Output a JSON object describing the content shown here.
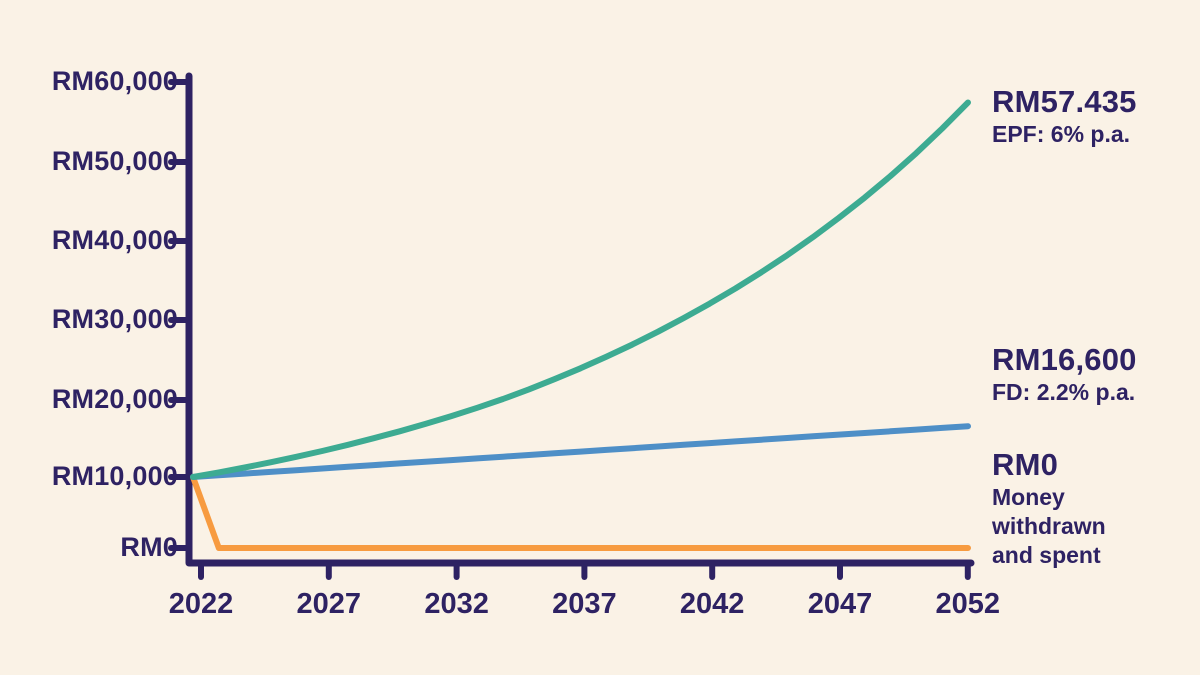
{
  "colors": {
    "background": "#faf2e6",
    "axis": "#2e2263",
    "text": "#2e2263",
    "epf_line": "#3dab92",
    "fd_line": "#4e8fc7",
    "withdrawn_line": "#f79b40"
  },
  "chart_data": {
    "type": "line",
    "title": "",
    "xlabel": "",
    "ylabel": "",
    "grid": false,
    "legend_position": "right-annotations",
    "x_range": [
      2022,
      2052
    ],
    "y_range": [
      0,
      60000
    ],
    "x_ticks": [
      2022,
      2027,
      2032,
      2037,
      2042,
      2047,
      2052
    ],
    "y_ticks": [
      0,
      10000,
      20000,
      30000,
      40000,
      50000,
      60000
    ],
    "y_tick_labels": [
      "RM0",
      "RM10,000",
      "RM20,000",
      "RM30,000",
      "RM40,000",
      "RM50,000",
      "RM60,000"
    ],
    "x": [
      2022,
      2023,
      2024,
      2025,
      2026,
      2027,
      2028,
      2029,
      2030,
      2031,
      2032,
      2033,
      2034,
      2035,
      2036,
      2037,
      2038,
      2039,
      2040,
      2041,
      2042,
      2043,
      2044,
      2045,
      2046,
      2047,
      2048,
      2049,
      2050,
      2051,
      2052
    ],
    "series": [
      {
        "name": "EPF",
        "end_label": "RM57.435",
        "sub_lines": [
          "EPF: 6% p.a."
        ],
        "color": "#3dab92",
        "values": [
          10000,
          10600,
          11236,
          11910,
          12625,
          13382,
          14185,
          15036,
          15938,
          16895,
          17908,
          18983,
          20122,
          21329,
          22609,
          23966,
          25404,
          26928,
          28543,
          30256,
          32071,
          33996,
          36035,
          38198,
          40489,
          42919,
          45494,
          48223,
          51117,
          54184,
          57435
        ]
      },
      {
        "name": "FD",
        "end_label": "RM16,600",
        "sub_lines": [
          "FD: 2.2% p.a."
        ],
        "color": "#4e8fc7",
        "values": [
          10000,
          10220,
          10440,
          10660,
          10880,
          11100,
          11320,
          11540,
          11760,
          11980,
          12200,
          12420,
          12640,
          12860,
          13080,
          13300,
          13520,
          13740,
          13960,
          14180,
          14400,
          14620,
          14840,
          15060,
          15280,
          15500,
          15720,
          15940,
          16160,
          16380,
          16600
        ]
      },
      {
        "name": "Money withdrawn and spent",
        "end_label": "RM0",
        "sub_lines": [
          "Money",
          "withdrawn",
          "and spent"
        ],
        "color": "#f79b40",
        "values": [
          10000,
          0,
          0,
          0,
          0,
          0,
          0,
          0,
          0,
          0,
          0,
          0,
          0,
          0,
          0,
          0,
          0,
          0,
          0,
          0,
          0,
          0,
          0,
          0,
          0,
          0,
          0,
          0,
          0,
          0,
          0
        ]
      }
    ]
  }
}
